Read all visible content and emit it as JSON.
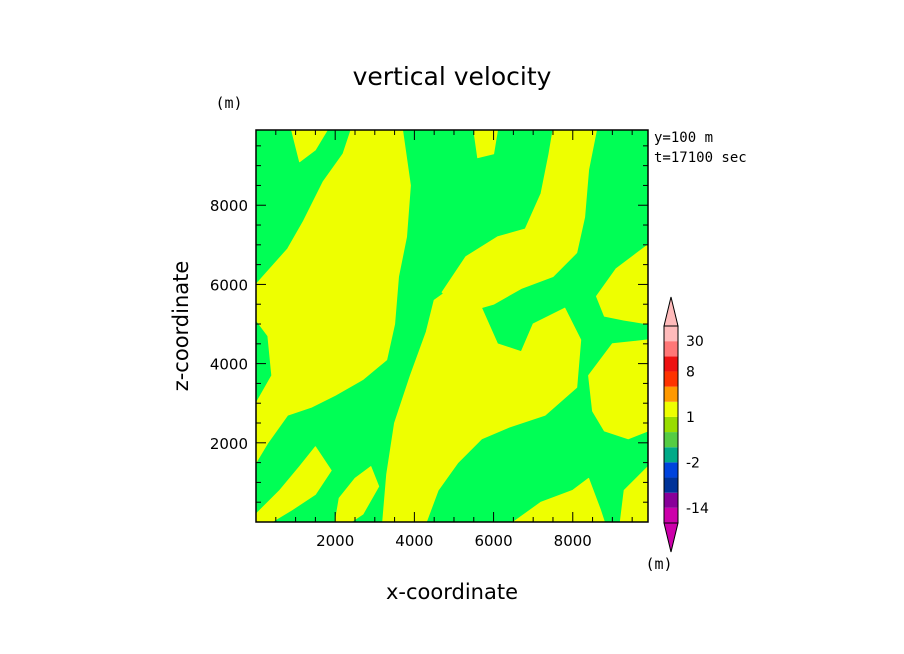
{
  "chart_data": {
    "type": "heatmap",
    "title": "vertical velocity",
    "xlabel": "x-coordinate",
    "ylabel": "z-coordinate",
    "xunit": "(m)",
    "yunit": "(m)",
    "annotations": [
      "y=100 m",
      "t=17100 sec"
    ],
    "xlim": [
      0,
      9900
    ],
    "ylim": [
      0,
      9900
    ],
    "xticks": [
      2000,
      4000,
      6000,
      8000
    ],
    "yticks": [
      2000,
      4000,
      6000,
      8000
    ],
    "xtick_labels": [
      "2000",
      "4000",
      "6000",
      "8000"
    ],
    "ytick_labels": [
      "2000",
      "4000",
      "6000",
      "8000"
    ],
    "grid": false,
    "base_color": "#00ff55",
    "yellow_color": "#eeff00",
    "yellow_regions": [
      [
        [
          0,
          6000
        ],
        [
          800,
          6900
        ],
        [
          1200,
          7600
        ],
        [
          1700,
          8600
        ],
        [
          2200,
          9300
        ],
        [
          2400,
          9900
        ],
        [
          3700,
          9900
        ],
        [
          3900,
          8500
        ],
        [
          3800,
          7200
        ],
        [
          3600,
          6200
        ],
        [
          3500,
          5000
        ],
        [
          3300,
          4100
        ],
        [
          2700,
          3600
        ],
        [
          2000,
          3200
        ],
        [
          1400,
          2900
        ],
        [
          800,
          2700
        ],
        [
          300,
          2000
        ],
        [
          0,
          1500
        ],
        [
          0,
          3000
        ],
        [
          400,
          3700
        ],
        [
          300,
          4700
        ],
        [
          0,
          5100
        ]
      ],
      [
        [
          900,
          9900
        ],
        [
          1800,
          9900
        ],
        [
          1500,
          9400
        ],
        [
          1100,
          9100
        ]
      ],
      [
        [
          3200,
          0
        ],
        [
          3300,
          1200
        ],
        [
          3500,
          2500
        ],
        [
          3900,
          3700
        ],
        [
          4300,
          4800
        ],
        [
          4500,
          5600
        ],
        [
          5200,
          6100
        ],
        [
          5700,
          5400
        ],
        [
          6100,
          4500
        ],
        [
          6700,
          4300
        ],
        [
          7000,
          5000
        ],
        [
          7800,
          5400
        ],
        [
          8200,
          4600
        ],
        [
          8100,
          3400
        ],
        [
          7300,
          2700
        ],
        [
          6400,
          2400
        ],
        [
          5700,
          2100
        ],
        [
          5100,
          1500
        ],
        [
          4600,
          800
        ],
        [
          4300,
          0
        ]
      ],
      [
        [
          4700,
          5800
        ],
        [
          5300,
          6700
        ],
        [
          6100,
          7200
        ],
        [
          6800,
          7400
        ],
        [
          7200,
          8300
        ],
        [
          7400,
          9300
        ],
        [
          7500,
          9900
        ],
        [
          8600,
          9900
        ],
        [
          8400,
          8900
        ],
        [
          8300,
          7700
        ],
        [
          8100,
          6800
        ],
        [
          7500,
          6200
        ],
        [
          6700,
          5900
        ],
        [
          6000,
          5500
        ],
        [
          5300,
          5300
        ]
      ],
      [
        [
          5500,
          9900
        ],
        [
          6100,
          9900
        ],
        [
          6000,
          9300
        ],
        [
          5600,
          9200
        ]
      ],
      [
        [
          8600,
          5700
        ],
        [
          9100,
          6400
        ],
        [
          9900,
          7000
        ],
        [
          9900,
          5000
        ],
        [
          9300,
          5100
        ],
        [
          8800,
          5200
        ]
      ],
      [
        [
          8400,
          3700
        ],
        [
          8700,
          4100
        ],
        [
          9000,
          4500
        ],
        [
          9900,
          4600
        ],
        [
          9900,
          2300
        ],
        [
          9400,
          2100
        ],
        [
          8800,
          2300
        ],
        [
          8500,
          2800
        ]
      ],
      [
        [
          6500,
          0
        ],
        [
          7200,
          500
        ],
        [
          8000,
          800
        ],
        [
          8400,
          1100
        ],
        [
          8700,
          300
        ],
        [
          8800,
          0
        ]
      ],
      [
        [
          9200,
          0
        ],
        [
          9300,
          800
        ],
        [
          9900,
          1400
        ],
        [
          9900,
          0
        ]
      ],
      [
        [
          0,
          200
        ],
        [
          600,
          800
        ],
        [
          1100,
          1400
        ],
        [
          1500,
          1900
        ],
        [
          1900,
          1300
        ],
        [
          1500,
          700
        ],
        [
          900,
          300
        ],
        [
          400,
          0
        ],
        [
          0,
          0
        ]
      ],
      [
        [
          2000,
          0
        ],
        [
          2100,
          600
        ],
        [
          2500,
          1100
        ],
        [
          2900,
          1400
        ],
        [
          3100,
          900
        ],
        [
          2700,
          200
        ],
        [
          2400,
          0
        ]
      ],
      [
        [
          1500,
          5600
        ],
        [
          2100,
          6000
        ],
        [
          2300,
          5600
        ],
        [
          1900,
          5100
        ],
        [
          1500,
          5200
        ]
      ],
      [
        [
          2000,
          4000
        ],
        [
          2400,
          4600
        ],
        [
          2800,
          4300
        ],
        [
          2600,
          3800
        ],
        [
          2200,
          3700
        ]
      ]
    ],
    "colorbar": {
      "levels": [
        -20,
        -14,
        -8,
        -4,
        -2,
        -1,
        0,
        1,
        2,
        4,
        8,
        16,
        30
      ],
      "colors": [
        "#cc00aa",
        "#880099",
        "#003399",
        "#0044dd",
        "#00aa88",
        "#55cc44",
        "#99dd00",
        "#eeff00",
        "#ff9900",
        "#ff3300",
        "#ee1111",
        "#ff7777",
        "#ffbbbb"
      ],
      "end_low_color": "#cc00aa",
      "end_high_color": "#ffbbbb",
      "tick_labels": [
        "30",
        "8",
        "1",
        "-2",
        "-14"
      ],
      "tick_values": [
        30,
        8,
        1,
        -2,
        -14
      ],
      "unit": "(m)"
    }
  }
}
